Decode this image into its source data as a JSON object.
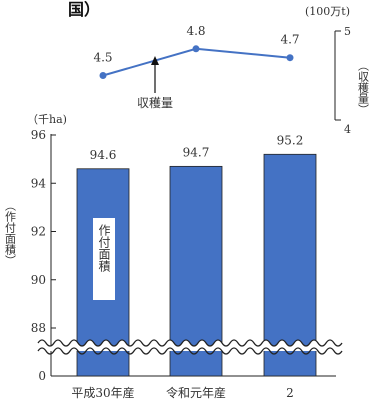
{
  "title": "国）",
  "chart_data": [
    {
      "type": "line",
      "name": "harvest",
      "categories": [
        "平成30年産",
        "令和元年産",
        "2"
      ],
      "values": [
        4.5,
        4.8,
        4.7
      ],
      "data_labels": [
        "4.5",
        "4.8",
        "4.7"
      ],
      "unit_label": "(100万t)",
      "axis_label": "（収穫量）",
      "ylim": [
        4,
        5
      ],
      "yticks": [
        "4",
        "5"
      ],
      "annotation": "収穫量",
      "color": "#4472c4"
    },
    {
      "type": "bar",
      "name": "area",
      "categories": [
        "平成30年産",
        "令和元年産",
        "2"
      ],
      "values": [
        94.6,
        94.7,
        95.2
      ],
      "data_labels": [
        "94.6",
        "94.7",
        "95.2"
      ],
      "unit_label": "（千ha)",
      "ylabel": "（作付面積）",
      "yticks": [
        "0",
        "88",
        "90",
        "92",
        "94",
        "96"
      ],
      "ylim": [
        88,
        96
      ],
      "axis_break": true,
      "bar_label": "作付面積",
      "bar_color": "#4472c4",
      "grid": false
    }
  ]
}
